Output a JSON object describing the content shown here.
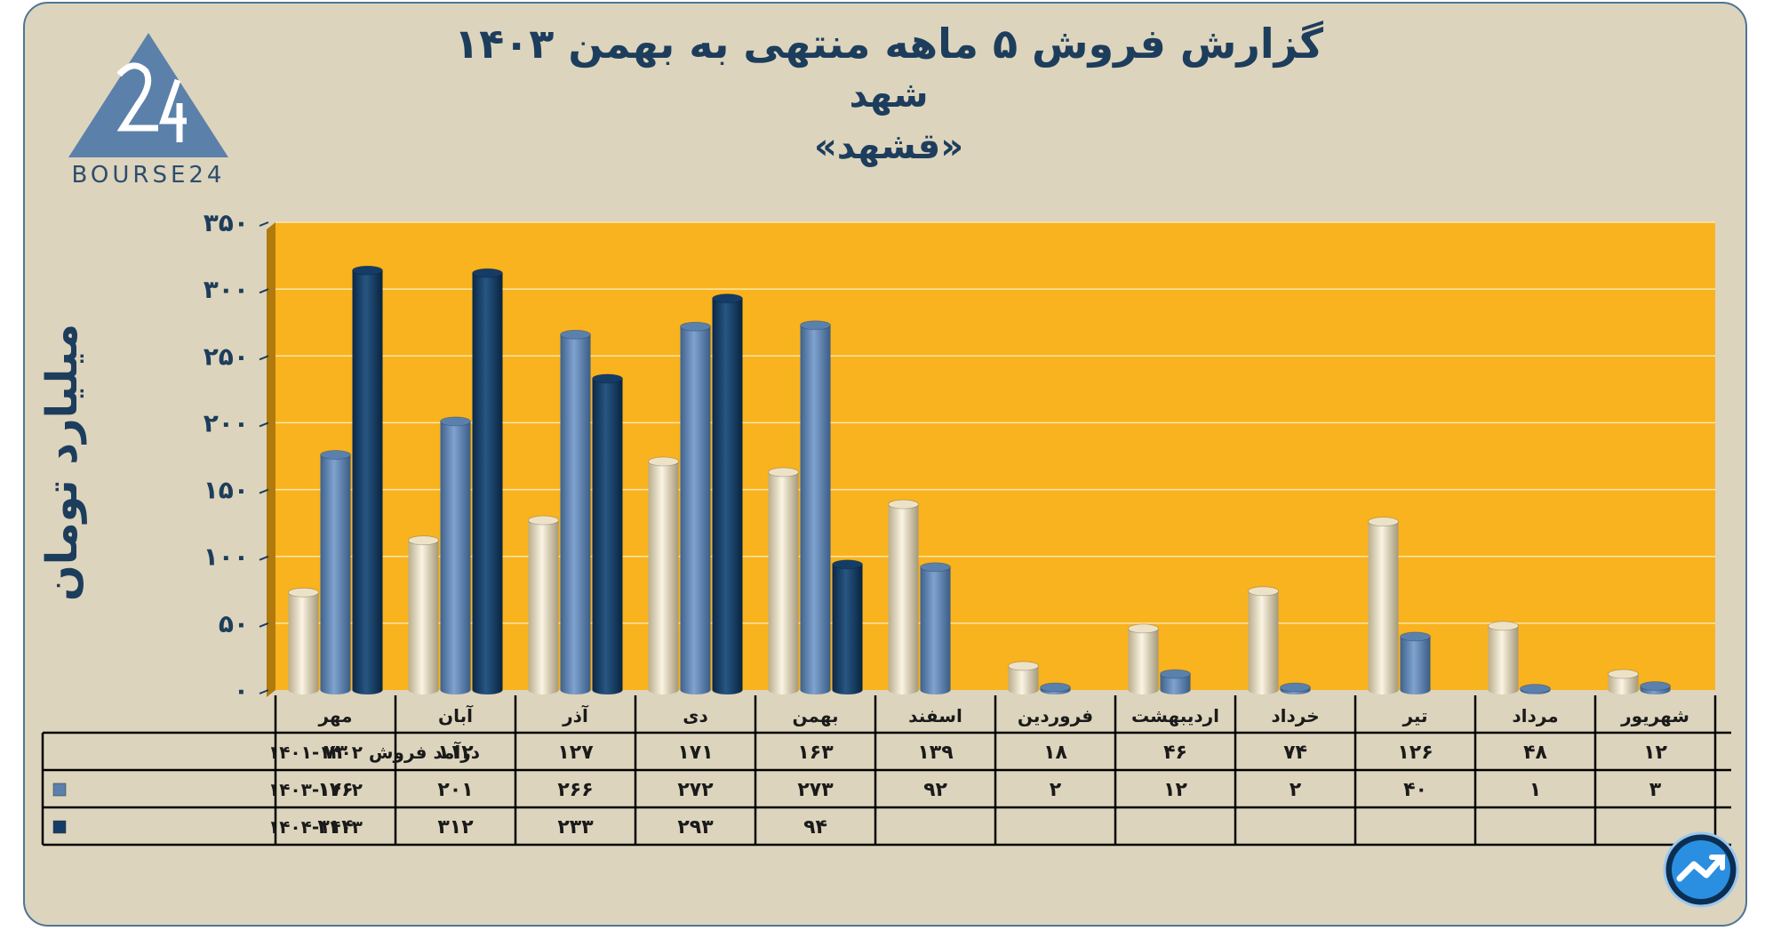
{
  "header": {
    "title_line1": "گزارش  فروش ۵ ماهه منتهی به بهمن ۱۴۰۳",
    "title_line2": "شهد",
    "title_line3": "«قشهد»"
  },
  "logo": {
    "text": "BOURSE24",
    "icon": "bourse24-triangle-logo"
  },
  "badge": {
    "icon": "trend-arrow-icon"
  },
  "colors": {
    "plot_bg": "#f8b31f",
    "series1": "#ede2c6",
    "series2": "#5a80ad",
    "series3": "#143c66"
  },
  "chart_data": {
    "type": "bar",
    "ylabel": "میلیارد تومان",
    "ylim": [
      0,
      350
    ],
    "yticks": [
      0,
      50,
      100,
      150,
      200,
      250,
      300,
      350
    ],
    "ytick_labels": [
      "۰",
      "۵۰",
      "۱۰۰",
      "۱۵۰",
      "۲۰۰",
      "۲۵۰",
      "۳۰۰",
      "۳۵۰"
    ],
    "grid": true,
    "categories": [
      "مهر",
      "آبان",
      "آذر",
      "دی",
      "بهمن",
      "اسفند",
      "فروردین",
      "اردیبهشت",
      "خرداد",
      "تیر",
      "مرداد",
      "شهریور"
    ],
    "series": [
      {
        "name": "درآمد فروش ۱۴۰۲-۱۴۰۱",
        "values": [
          73,
          112,
          127,
          171,
          163,
          139,
          18,
          46,
          74,
          126,
          48,
          12
        ],
        "labels": [
          "۷۳",
          "۱۱۲",
          "۱۲۷",
          "۱۷۱",
          "۱۶۳",
          "۱۳۹",
          "۱۸",
          "۴۶",
          "۷۴",
          "۱۲۶",
          "۴۸",
          "۱۲"
        ]
      },
      {
        "name": "۱۴۰۳-۱۴۰۲",
        "values": [
          176,
          201,
          266,
          272,
          273,
          92,
          2,
          12,
          2,
          40,
          1,
          3
        ],
        "labels": [
          "۱۷۶",
          "۲۰۱",
          "۲۶۶",
          "۲۷۲",
          "۲۷۳",
          "۹۲",
          "۲",
          "۱۲",
          "۲",
          "۴۰",
          "۱",
          "۳"
        ]
      },
      {
        "name": "۱۴۰۴-۱۴۰۳",
        "values": [
          314,
          312,
          233,
          293,
          94,
          null,
          null,
          null,
          null,
          null,
          null,
          null
        ],
        "labels": [
          "۳۱۴",
          "۳۱۲",
          "۲۳۳",
          "۲۹۳",
          "۹۴",
          "",
          "",
          "",
          "",
          "",
          "",
          ""
        ]
      }
    ]
  }
}
